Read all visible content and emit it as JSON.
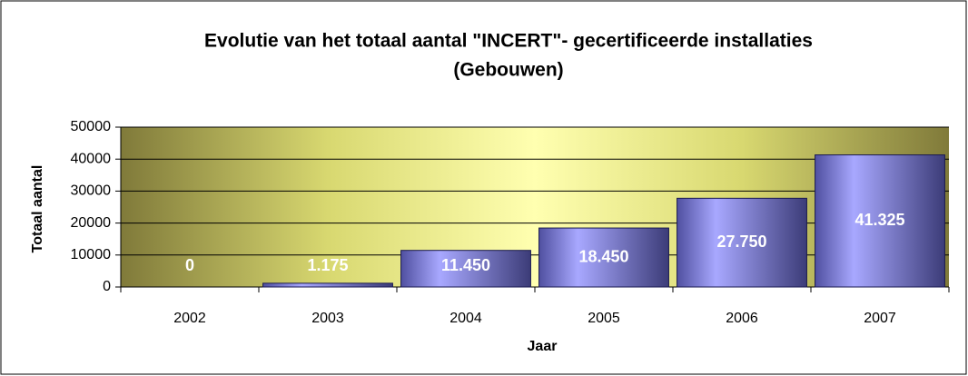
{
  "chart_data": {
    "type": "bar",
    "title": [
      "Evolutie van het totaal aantal \"INCERT\"- gecertificeerde installaties",
      "(Gebouwen)"
    ],
    "x_label": "Jaar",
    "y_label": "Totaal aantal",
    "categories": [
      "2002",
      "2003",
      "2004",
      "2005",
      "2006",
      "2007"
    ],
    "values": [
      0,
      1175,
      11450,
      18450,
      27750,
      41325
    ],
    "value_labels": [
      "0",
      "1.175",
      "11.450",
      "18.450",
      "27.750",
      "41.325"
    ],
    "color": "#8a8ae6",
    "ylim": [
      0,
      50000
    ],
    "yticks": [
      0,
      10000,
      20000,
      30000,
      40000,
      50000
    ],
    "grid": true
  }
}
